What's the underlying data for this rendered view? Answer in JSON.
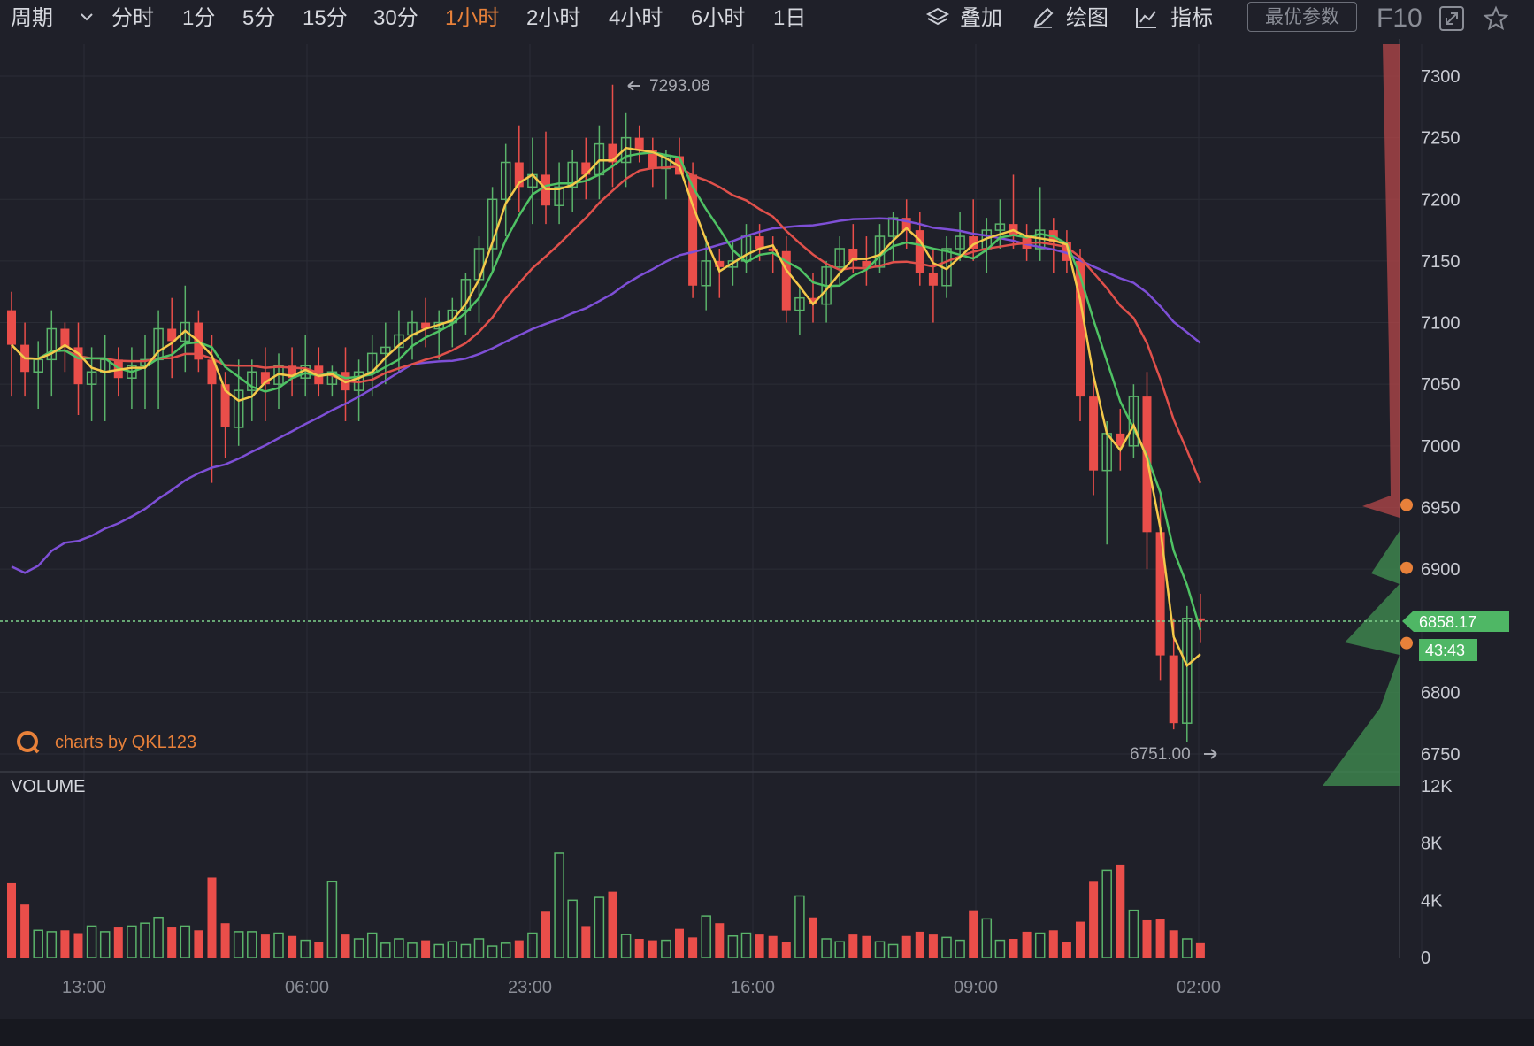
{
  "toolbar": {
    "period_label": "周期",
    "intervals": [
      "分时",
      "1分",
      "5分",
      "15分",
      "30分",
      "1小时",
      "2小时",
      "4小时",
      "6小时",
      "1日"
    ],
    "active_interval": "1小时",
    "overlay_label": "叠加",
    "draw_label": "绘图",
    "indicator_label": "指标",
    "param_button": "最优参数",
    "f10_label": "F10"
  },
  "colors": {
    "background": "#1f2029",
    "up": "#5ab36a",
    "down": "#ea4e4a",
    "ma_yellow": "#f4c84a",
    "ma_green": "#4fc264",
    "ma_red": "#e0504b",
    "ma_purple": "#7e4fd6",
    "accent": "#e8813a"
  },
  "chart_data": {
    "type": "candlestick",
    "x_tick_labels": [
      "13:00",
      "06:00",
      "23:00",
      "16:00",
      "09:00",
      "02:00"
    ],
    "y_ticks": [
      6750,
      6800,
      6900,
      6950,
      7000,
      7050,
      7100,
      7150,
      7200,
      7250,
      7300
    ],
    "ylim": [
      6735,
      7330
    ],
    "volume_label": "VOLUME",
    "volume_tick_labels": [
      "12K",
      "8K",
      "4K",
      "0"
    ],
    "volume_max": 12000,
    "high_annotation": "7293.08",
    "low_annotation": "6751.00",
    "last_price": "6858.17",
    "countdown": "43:43",
    "watermark": "charts by QKL123",
    "order_dots": [
      6952,
      6901,
      6840
    ],
    "candles": [
      [
        7110,
        7125,
        7040,
        7082
      ],
      [
        7082,
        7100,
        7040,
        7060
      ],
      [
        7060,
        7085,
        7030,
        7070
      ],
      [
        7070,
        7110,
        7040,
        7095
      ],
      [
        7095,
        7100,
        7060,
        7080
      ],
      [
        7080,
        7100,
        7025,
        7050
      ],
      [
        7050,
        7080,
        7020,
        7060
      ],
      [
        7060,
        7090,
        7020,
        7070
      ],
      [
        7070,
        7080,
        7040,
        7055
      ],
      [
        7055,
        7080,
        7030,
        7065
      ],
      [
        7065,
        7090,
        7030,
        7070
      ],
      [
        7070,
        7110,
        7030,
        7095
      ],
      [
        7095,
        7120,
        7055,
        7085
      ],
      [
        7085,
        7130,
        7060,
        7100
      ],
      [
        7100,
        7110,
        7060,
        7070
      ],
      [
        7070,
        7090,
        6970,
        7050
      ],
      [
        7050,
        7060,
        6990,
        7015
      ],
      [
        7015,
        7070,
        7000,
        7045
      ],
      [
        7045,
        7070,
        7020,
        7060
      ],
      [
        7060,
        7080,
        7020,
        7050
      ],
      [
        7050,
        7075,
        7030,
        7065
      ],
      [
        7065,
        7080,
        7040,
        7055
      ],
      [
        7055,
        7090,
        7040,
        7065
      ],
      [
        7065,
        7080,
        7040,
        7050
      ],
      [
        7050,
        7065,
        7040,
        7060
      ],
      [
        7060,
        7080,
        7020,
        7045
      ],
      [
        7045,
        7070,
        7020,
        7060
      ],
      [
        7060,
        7090,
        7040,
        7075
      ],
      [
        7075,
        7100,
        7050,
        7080
      ],
      [
        7080,
        7110,
        7060,
        7090
      ],
      [
        7090,
        7110,
        7070,
        7100
      ],
      [
        7100,
        7120,
        7080,
        7095
      ],
      [
        7095,
        7110,
        7070,
        7100
      ],
      [
        7100,
        7120,
        7080,
        7110
      ],
      [
        7110,
        7140,
        7090,
        7135
      ],
      [
        7135,
        7170,
        7100,
        7160
      ],
      [
        7160,
        7210,
        7140,
        7200
      ],
      [
        7200,
        7245,
        7170,
        7230
      ],
      [
        7230,
        7260,
        7190,
        7210
      ],
      [
        7210,
        7250,
        7180,
        7220
      ],
      [
        7220,
        7255,
        7180,
        7195
      ],
      [
        7195,
        7230,
        7180,
        7210
      ],
      [
        7210,
        7240,
        7190,
        7230
      ],
      [
        7230,
        7250,
        7200,
        7220
      ],
      [
        7220,
        7260,
        7200,
        7245
      ],
      [
        7245,
        7293,
        7210,
        7230
      ],
      [
        7230,
        7270,
        7210,
        7250
      ],
      [
        7250,
        7260,
        7230,
        7240
      ],
      [
        7240,
        7250,
        7210,
        7225
      ],
      [
        7225,
        7240,
        7200,
        7235
      ],
      [
        7235,
        7250,
        7220,
        7220
      ],
      [
        7220,
        7230,
        7120,
        7130
      ],
      [
        7130,
        7170,
        7110,
        7150
      ],
      [
        7150,
        7160,
        7120,
        7145
      ],
      [
        7145,
        7165,
        7130,
        7150
      ],
      [
        7150,
        7180,
        7140,
        7170
      ],
      [
        7170,
        7180,
        7150,
        7160
      ],
      [
        7160,
        7170,
        7140,
        7158
      ],
      [
        7158,
        7170,
        7100,
        7110
      ],
      [
        7110,
        7130,
        7090,
        7120
      ],
      [
        7120,
        7140,
        7100,
        7115
      ],
      [
        7115,
        7150,
        7100,
        7145
      ],
      [
        7145,
        7170,
        7130,
        7160
      ],
      [
        7160,
        7180,
        7140,
        7150
      ],
      [
        7150,
        7170,
        7130,
        7145
      ],
      [
        7145,
        7180,
        7140,
        7170
      ],
      [
        7170,
        7190,
        7150,
        7185
      ],
      [
        7185,
        7200,
        7160,
        7175
      ],
      [
        7175,
        7190,
        7130,
        7140
      ],
      [
        7140,
        7160,
        7100,
        7130
      ],
      [
        7130,
        7170,
        7120,
        7160
      ],
      [
        7160,
        7190,
        7150,
        7170
      ],
      [
        7170,
        7200,
        7150,
        7160
      ],
      [
        7160,
        7185,
        7140,
        7175
      ],
      [
        7175,
        7200,
        7160,
        7180
      ],
      [
        7180,
        7220,
        7160,
        7170
      ],
      [
        7170,
        7180,
        7150,
        7160
      ],
      [
        7160,
        7210,
        7150,
        7175
      ],
      [
        7175,
        7185,
        7140,
        7165
      ],
      [
        7165,
        7175,
        7140,
        7150
      ],
      [
        7150,
        7160,
        7020,
        7040
      ],
      [
        7040,
        7060,
        6960,
        6980
      ],
      [
        6980,
        7020,
        6920,
        7010
      ],
      [
        7010,
        7030,
        6980,
        7000
      ],
      [
        7000,
        7050,
        6990,
        7040
      ],
      [
        7040,
        7060,
        6900,
        6930
      ],
      [
        6930,
        6960,
        6810,
        6830
      ],
      [
        6830,
        6860,
        6770,
        6775
      ],
      [
        6775,
        6870,
        6760,
        6860
      ],
      [
        6860,
        6880,
        6840,
        6858
      ]
    ],
    "volumes": [
      5200,
      3700,
      1900,
      1800,
      1900,
      1700,
      2200,
      1800,
      2100,
      2200,
      2400,
      2800,
      2100,
      2200,
      1900,
      5600,
      2400,
      1800,
      1800,
      1600,
      1700,
      1500,
      1200,
      1100,
      5300,
      1600,
      1300,
      1700,
      1000,
      1300,
      1000,
      1200,
      900,
      1100,
      900,
      1300,
      800,
      1000,
      1200,
      1700,
      3200,
      7300,
      4000,
      2200,
      4200,
      4600,
      1600,
      1300,
      1200,
      1200,
      2000,
      1400,
      2900,
      2400,
      1500,
      1700,
      1600,
      1500,
      1100,
      4300,
      2800,
      1300,
      1100,
      1600,
      1500,
      1100,
      900,
      1500,
      1800,
      1600,
      1400,
      1200,
      3300,
      2700,
      1200,
      1300,
      1800,
      1700,
      1900,
      1100,
      2500,
      5300,
      6100,
      6500,
      3300,
      2600,
      2700,
      1900,
      1300,
      1000
    ]
  }
}
